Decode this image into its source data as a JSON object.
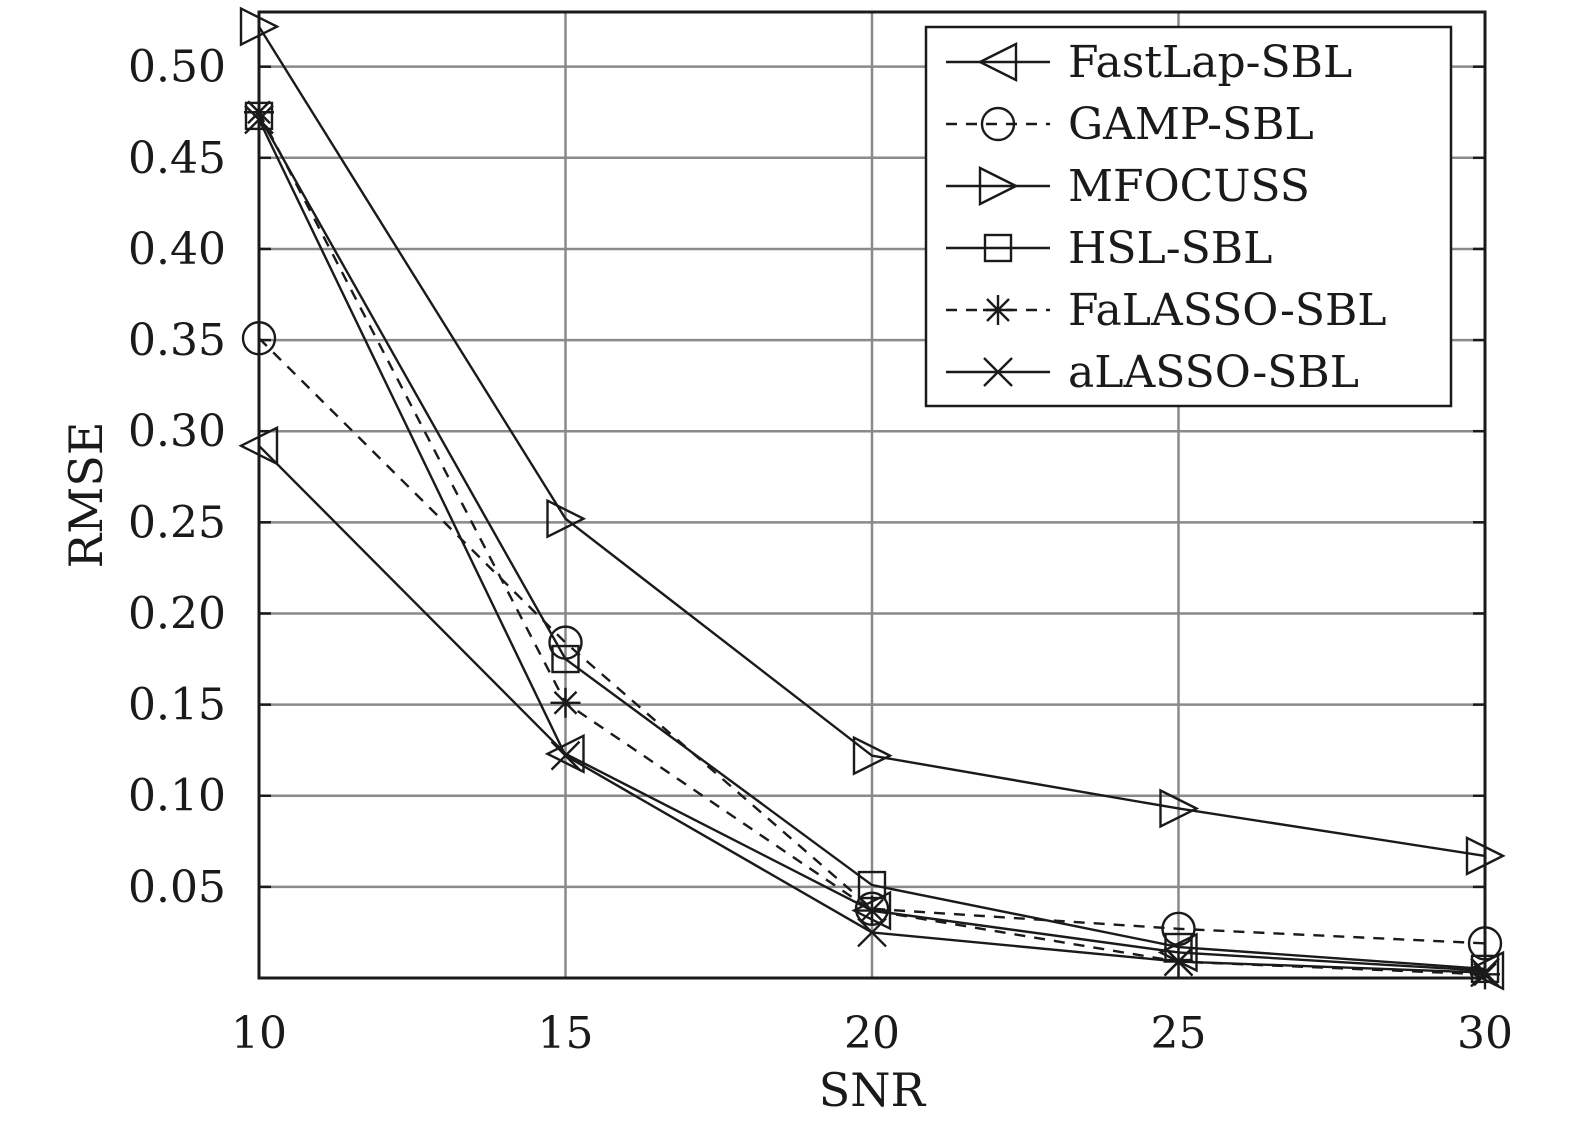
{
  "chart_data": {
    "type": "line",
    "title": "",
    "xlabel": "SNR",
    "ylabel": "RMSE",
    "x": [
      10,
      15,
      20,
      25,
      30
    ],
    "xlim": [
      10,
      30
    ],
    "ylim": [
      0,
      0.53
    ],
    "xticks": [
      "10",
      "15",
      "20",
      "25",
      "30"
    ],
    "yticks": [
      "0.05",
      "0.10",
      "0.15",
      "0.20",
      "0.25",
      "0.30",
      "0.35",
      "0.40",
      "0.45",
      "0.50"
    ],
    "ytick_values": [
      0.05,
      0.1,
      0.15,
      0.2,
      0.25,
      0.3,
      0.35,
      0.4,
      0.45,
      0.5
    ],
    "grid": true,
    "legend_position": "top-right",
    "series": [
      {
        "name": "FastLap-SBL",
        "marker": "triangle-left",
        "dash": "solid",
        "values": [
          0.292,
          0.123,
          0.037,
          0.014,
          0.004
        ]
      },
      {
        "name": "GAMP-SBL",
        "marker": "circle",
        "dash": "dashed",
        "values": [
          0.351,
          0.184,
          0.038,
          0.027,
          0.019
        ]
      },
      {
        "name": "MFOCUSS",
        "marker": "triangle-right",
        "dash": "solid",
        "values": [
          0.522,
          0.252,
          0.122,
          0.093,
          0.067
        ]
      },
      {
        "name": "HSL-SBL",
        "marker": "square",
        "dash": "solid",
        "values": [
          0.473,
          0.175,
          0.051,
          0.017,
          0.005
        ]
      },
      {
        "name": "FaLASSO-SBL",
        "marker": "asterisk",
        "dash": "dashed",
        "values": [
          0.475,
          0.151,
          0.037,
          0.009,
          0.002
        ]
      },
      {
        "name": "aLASSO-SBL",
        "marker": "x",
        "dash": "solid",
        "values": [
          0.471,
          0.122,
          0.025,
          0.009,
          0.003
        ]
      }
    ]
  }
}
